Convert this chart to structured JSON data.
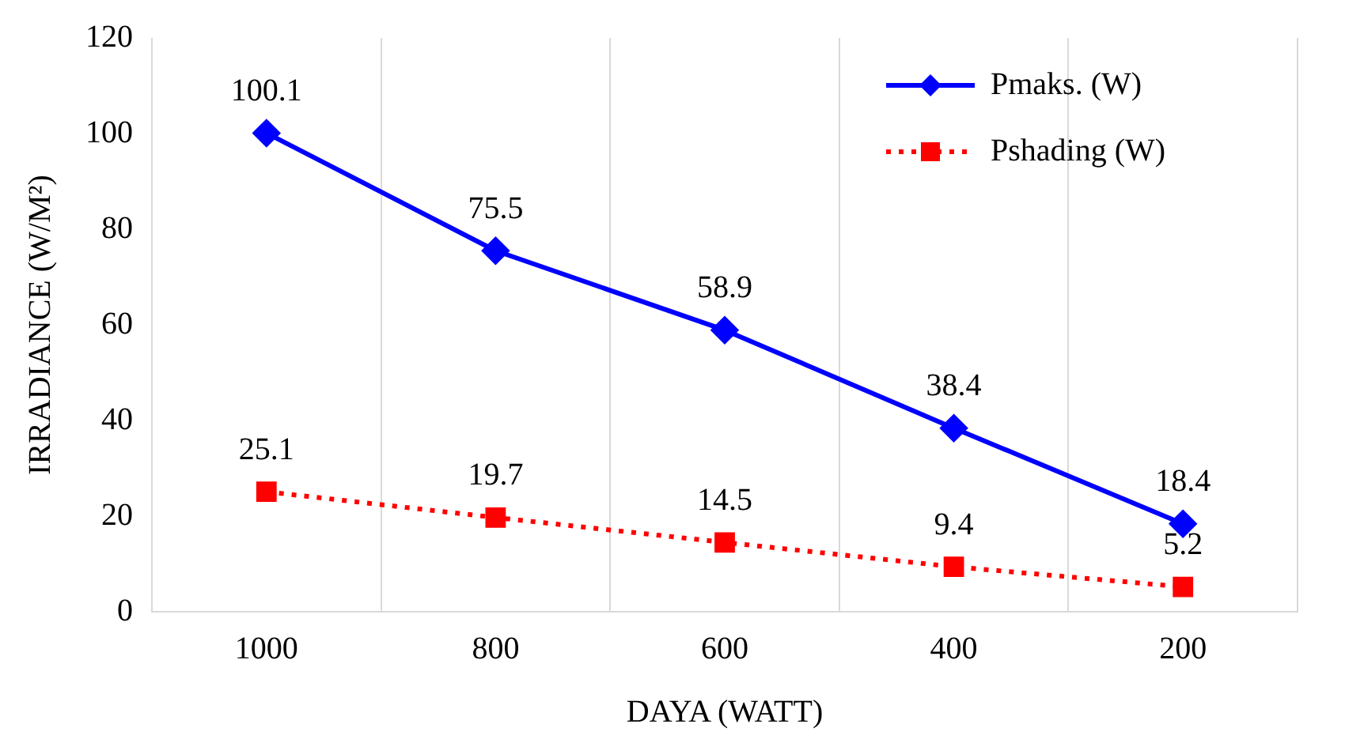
{
  "chart_data": {
    "type": "line",
    "xlabel": "DAYA (WATT)",
    "ylabel": "IRRADIANCE (W/M²)",
    "categories": [
      "1000",
      "800",
      "600",
      "400",
      "200"
    ],
    "series": [
      {
        "name": "Pmaks. (W)",
        "color": "#0000ff",
        "values": [
          100.1,
          75.5,
          58.9,
          38.4,
          18.4
        ],
        "marker": "diamond",
        "line_style": "solid"
      },
      {
        "name": "Pshading (W)",
        "color": "#ff0000",
        "values": [
          25.1,
          19.7,
          14.5,
          9.4,
          5.2
        ],
        "marker": "square",
        "line_style": "dotted"
      }
    ],
    "ylim": [
      0,
      120
    ],
    "yticks": [
      0,
      20,
      40,
      60,
      80,
      100,
      120
    ],
    "grid": "x",
    "legend": "top right",
    "data_labels": true
  }
}
